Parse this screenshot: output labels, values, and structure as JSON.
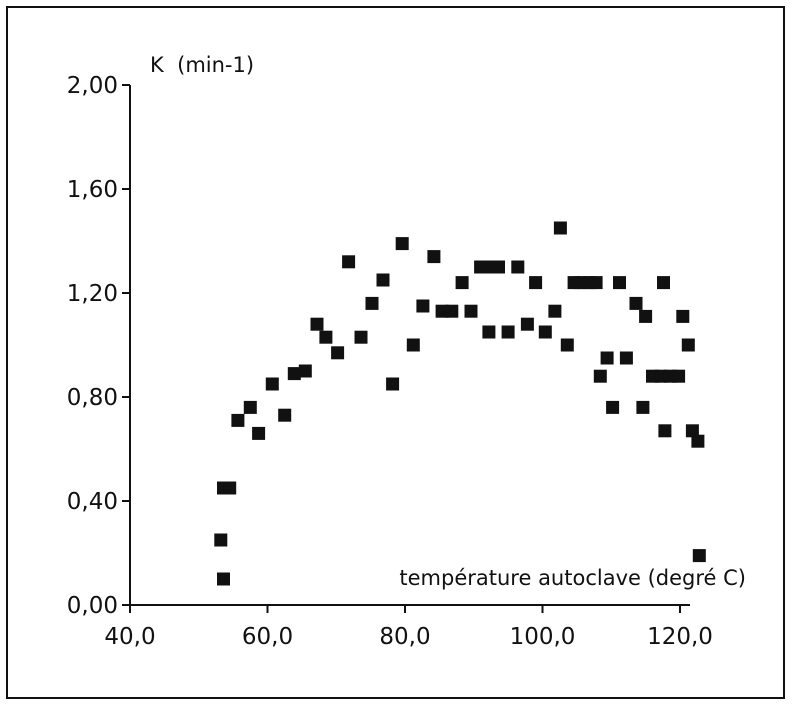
{
  "chart_data": {
    "type": "scatter",
    "title": "",
    "ylabel": "K  (min-1)",
    "xlabel": "température autoclave (degré C)",
    "xlim": [
      40,
      125
    ],
    "ylim": [
      0,
      2
    ],
    "x_ticks": [
      40,
      60,
      80,
      100,
      120
    ],
    "y_ticks": [
      0,
      0.4,
      0.8,
      1.2,
      1.6,
      2.0
    ],
    "x_tick_labels": [
      "40,0",
      "60,0",
      "80,0",
      "100,0",
      "120,0"
    ],
    "y_tick_labels": [
      "0,00",
      "0,40",
      "0,80",
      "1,20",
      "1,60",
      "2,00"
    ],
    "grid": false,
    "legend": "none",
    "marker": "filled-square",
    "marker_color": "#111111",
    "points": [
      {
        "x": 53.2,
        "y": 0.25
      },
      {
        "x": 53.6,
        "y": 0.1
      },
      {
        "x": 53.6,
        "y": 0.45
      },
      {
        "x": 54.5,
        "y": 0.45
      },
      {
        "x": 55.7,
        "y": 0.71
      },
      {
        "x": 57.5,
        "y": 0.76
      },
      {
        "x": 58.7,
        "y": 0.66
      },
      {
        "x": 60.7,
        "y": 0.85
      },
      {
        "x": 62.5,
        "y": 0.73
      },
      {
        "x": 63.9,
        "y": 0.89
      },
      {
        "x": 65.5,
        "y": 0.9
      },
      {
        "x": 67.2,
        "y": 1.08
      },
      {
        "x": 68.5,
        "y": 1.03
      },
      {
        "x": 70.2,
        "y": 0.97
      },
      {
        "x": 71.8,
        "y": 1.32
      },
      {
        "x": 73.6,
        "y": 1.03
      },
      {
        "x": 75.2,
        "y": 1.16
      },
      {
        "x": 76.8,
        "y": 1.25
      },
      {
        "x": 78.2,
        "y": 0.85
      },
      {
        "x": 79.6,
        "y": 1.39
      },
      {
        "x": 81.2,
        "y": 1.0
      },
      {
        "x": 82.6,
        "y": 1.15
      },
      {
        "x": 84.2,
        "y": 1.34
      },
      {
        "x": 85.4,
        "y": 1.13
      },
      {
        "x": 86.8,
        "y": 1.13
      },
      {
        "x": 88.3,
        "y": 1.24
      },
      {
        "x": 89.6,
        "y": 1.13
      },
      {
        "x": 91.0,
        "y": 1.3
      },
      {
        "x": 92.2,
        "y": 1.05
      },
      {
        "x": 92.8,
        "y": 1.3
      },
      {
        "x": 93.6,
        "y": 1.3
      },
      {
        "x": 95.0,
        "y": 1.05
      },
      {
        "x": 96.4,
        "y": 1.3
      },
      {
        "x": 97.8,
        "y": 1.08
      },
      {
        "x": 99.0,
        "y": 1.24
      },
      {
        "x": 100.4,
        "y": 1.05
      },
      {
        "x": 101.8,
        "y": 1.13
      },
      {
        "x": 102.6,
        "y": 1.45
      },
      {
        "x": 103.6,
        "y": 1.0
      },
      {
        "x": 104.6,
        "y": 1.24
      },
      {
        "x": 105.6,
        "y": 1.24
      },
      {
        "x": 106.8,
        "y": 1.24
      },
      {
        "x": 107.8,
        "y": 1.24
      },
      {
        "x": 108.4,
        "y": 0.88
      },
      {
        "x": 109.4,
        "y": 0.95
      },
      {
        "x": 110.2,
        "y": 0.76
      },
      {
        "x": 111.2,
        "y": 1.24
      },
      {
        "x": 112.2,
        "y": 0.95
      },
      {
        "x": 113.6,
        "y": 1.16
      },
      {
        "x": 114.6,
        "y": 0.76
      },
      {
        "x": 115.0,
        "y": 1.11
      },
      {
        "x": 116.0,
        "y": 0.88
      },
      {
        "x": 117.2,
        "y": 0.88
      },
      {
        "x": 117.6,
        "y": 1.24
      },
      {
        "x": 117.8,
        "y": 0.67
      },
      {
        "x": 118.6,
        "y": 0.88
      },
      {
        "x": 119.8,
        "y": 0.88
      },
      {
        "x": 120.4,
        "y": 1.11
      },
      {
        "x": 121.2,
        "y": 1.0
      },
      {
        "x": 121.8,
        "y": 0.67
      },
      {
        "x": 122.6,
        "y": 0.63
      },
      {
        "x": 122.8,
        "y": 0.19
      }
    ]
  }
}
